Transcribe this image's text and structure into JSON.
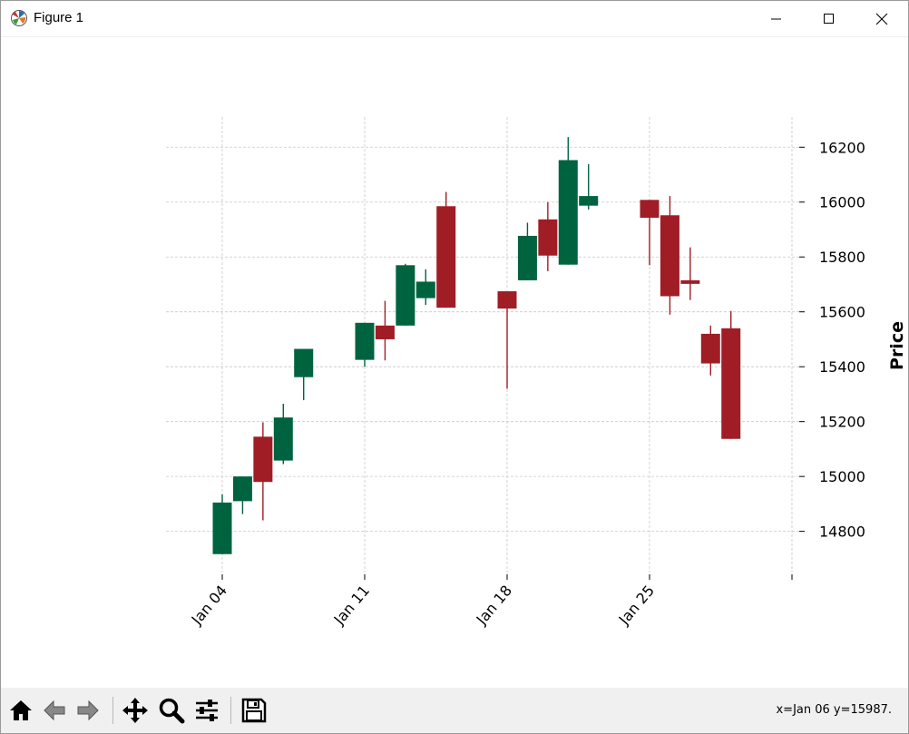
{
  "window": {
    "title": "Figure 1"
  },
  "toolbar": {
    "buttons": [
      "home-icon",
      "back-arrow-icon",
      "forward-arrow-icon",
      "pan-icon",
      "zoom-icon",
      "configure-subplots-icon",
      "save-icon"
    ],
    "status": "x=Jan 06 y=15987."
  },
  "colors": {
    "up": "#006340",
    "down": "#a01d26",
    "grid": "#c8c8c8"
  },
  "chart_data": {
    "type": "candlestick",
    "ylabel": "Price",
    "ylim": [
      14650,
      16310
    ],
    "yticks": [
      14800,
      15000,
      15200,
      15400,
      15600,
      15800,
      16000,
      16200
    ],
    "xticks": [
      {
        "day": 4,
        "label": "Jan 04"
      },
      {
        "day": 11,
        "label": "Jan 11"
      },
      {
        "day": 18,
        "label": "Jan 18"
      },
      {
        "day": 25,
        "label": "Jan 25"
      },
      {
        "day": 32,
        "label": ""
      }
    ],
    "grid": true,
    "candles": [
      {
        "date": "Jan 04",
        "day": 4,
        "open": 14717,
        "high": 14935,
        "low": 14717,
        "close": 14905
      },
      {
        "date": "Jan 05",
        "day": 5,
        "open": 14910,
        "high": 15000,
        "low": 14863,
        "close": 15000
      },
      {
        "date": "Jan 06",
        "day": 6,
        "open": 15145,
        "high": 15197,
        "low": 14840,
        "close": 14980
      },
      {
        "date": "Jan 07",
        "day": 7,
        "open": 15058,
        "high": 15265,
        "low": 15045,
        "close": 15215
      },
      {
        "date": "Jan 08",
        "day": 8,
        "open": 15362,
        "high": 15465,
        "low": 15278,
        "close": 15465
      },
      {
        "date": "Jan 11",
        "day": 11,
        "open": 15425,
        "high": 15560,
        "low": 15400,
        "close": 15560
      },
      {
        "date": "Jan 12",
        "day": 12,
        "open": 15550,
        "high": 15640,
        "low": 15423,
        "close": 15500
      },
      {
        "date": "Jan 13",
        "day": 13,
        "open": 15550,
        "high": 15775,
        "low": 15550,
        "close": 15770
      },
      {
        "date": "Jan 14",
        "day": 14,
        "open": 15650,
        "high": 15755,
        "low": 15625,
        "close": 15710
      },
      {
        "date": "Jan 15",
        "day": 15,
        "open": 15985,
        "high": 16037,
        "low": 15615,
        "close": 15615
      },
      {
        "date": "Jan 18",
        "day": 18,
        "open": 15675,
        "high": 15675,
        "low": 15320,
        "close": 15612
      },
      {
        "date": "Jan 19",
        "day": 19,
        "open": 15715,
        "high": 15925,
        "low": 15715,
        "close": 15877
      },
      {
        "date": "Jan 20",
        "day": 20,
        "open": 15937,
        "high": 16000,
        "low": 15748,
        "close": 15805
      },
      {
        "date": "Jan 21",
        "day": 21,
        "open": 15772,
        "high": 16237,
        "low": 15772,
        "close": 16153
      },
      {
        "date": "Jan 22",
        "day": 22,
        "open": 15987,
        "high": 16138,
        "low": 15973,
        "close": 16022
      },
      {
        "date": "Jan 25",
        "day": 25,
        "open": 16008,
        "high": 16008,
        "low": 15770,
        "close": 15943
      },
      {
        "date": "Jan 26",
        "day": 26,
        "open": 15952,
        "high": 16022,
        "low": 15590,
        "close": 15657
      },
      {
        "date": "Jan 27",
        "day": 27,
        "open": 15715,
        "high": 15835,
        "low": 15643,
        "close": 15702
      },
      {
        "date": "Jan 28",
        "day": 28,
        "open": 15520,
        "high": 15550,
        "low": 15368,
        "close": 15412
      },
      {
        "date": "Jan 29",
        "day": 29,
        "open": 15540,
        "high": 15603,
        "low": 15137,
        "close": 15137
      }
    ]
  }
}
